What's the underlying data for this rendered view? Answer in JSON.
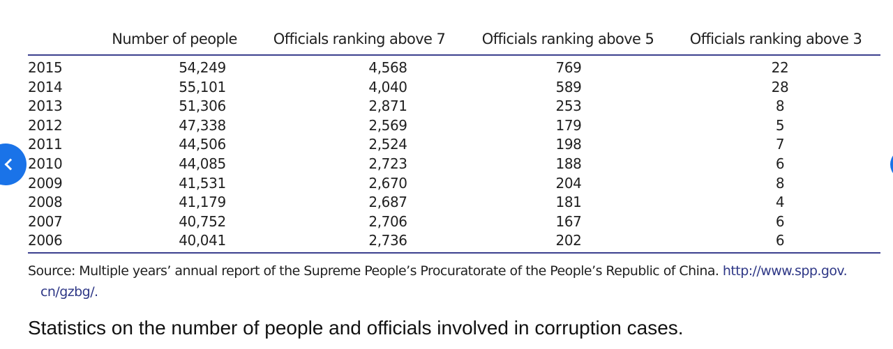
{
  "table": {
    "headers": [
      "",
      "Number of people",
      "Officials ranking above 7",
      "Officials ranking above 5",
      "Officials ranking above 3"
    ],
    "rows": [
      [
        "2015",
        "54,249",
        "4,568",
        "769",
        "22"
      ],
      [
        "2014",
        "55,101",
        "4,040",
        "589",
        "28"
      ],
      [
        "2013",
        "51,306",
        "2,871",
        "253",
        "8"
      ],
      [
        "2012",
        "47,338",
        "2,569",
        "179",
        "5"
      ],
      [
        "2011",
        "44,506",
        "2,524",
        "198",
        "7"
      ],
      [
        "2010",
        "44,085",
        "2,723",
        "188",
        "6"
      ],
      [
        "2009",
        "41,531",
        "2,670",
        "204",
        "8"
      ],
      [
        "2008",
        "41,179",
        "2,687",
        "181",
        "4"
      ],
      [
        "2007",
        "40,752",
        "2,706",
        "167",
        "6"
      ],
      [
        "2006",
        "40,041",
        "2,736",
        "202",
        "6"
      ]
    ]
  },
  "source": {
    "text": "Source: Multiple years’ annual report of the Supreme People’s Procuratorate of the People’s Republic of China. ",
    "link_part1": "http://www.spp.gov.",
    "link_part2": "cn/gzbg/",
    "suffix": "."
  },
  "caption": "Statistics on the number of people and officials involved in corruption cases.",
  "nav": {
    "prev_icon": "chevron-left-icon",
    "accent_color": "#1a73e8"
  }
}
